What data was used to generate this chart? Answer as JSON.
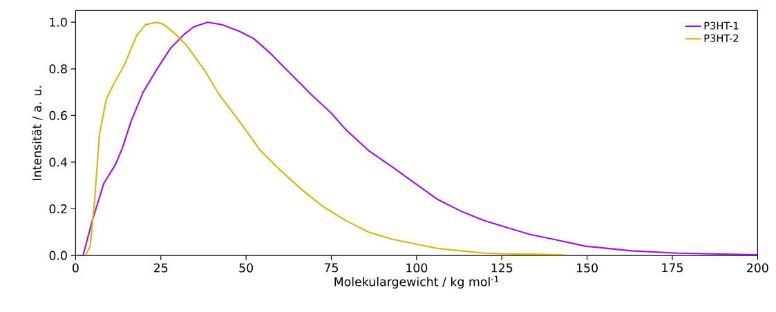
{
  "chart_data": {
    "type": "line",
    "xlabel": "Molekulargewicht / kg mol$^{-1}$",
    "ylabel": "Intensität / a. u.",
    "xlim": [
      0,
      200
    ],
    "ylim": [
      0,
      1.05
    ],
    "xticks": [
      0,
      25,
      50,
      75,
      100,
      125,
      150,
      175,
      200
    ],
    "yticks": [
      {
        "value": 0,
        "label": "0.0"
      },
      {
        "value": 0.2,
        "label": "0.2"
      },
      {
        "value": 0.4,
        "label": "0.4"
      },
      {
        "value": 0.6,
        "label": "0.6"
      },
      {
        "value": 0.8,
        "label": "0.8"
      },
      {
        "value": 1.0,
        "label": "1.0"
      }
    ],
    "legend": "top right",
    "grid": false,
    "marker": "none",
    "line_style": "solid",
    "series": [
      {
        "name": "P3HT-1",
        "color": "#a00ff0",
        "x": [
          0.9,
          2.2,
          4.9,
          8.3,
          11.7,
          13.7,
          16.4,
          19.8,
          23.9,
          27.9,
          32,
          34.6,
          38.7,
          42.8,
          48.2,
          52.2,
          56.9,
          61.6,
          65.7,
          69.1,
          75,
          79.2,
          85.9,
          92.8,
          99.5,
          106.2,
          113,
          119.8,
          126.4,
          133.3,
          140,
          149.5,
          163,
          176.5,
          200
        ],
        "values": [
          0,
          0,
          0.15,
          0.31,
          0.39,
          0.46,
          0.58,
          0.7,
          0.8,
          0.89,
          0.95,
          0.98,
          1.0,
          0.99,
          0.96,
          0.93,
          0.87,
          0.8,
          0.74,
          0.69,
          0.61,
          0.54,
          0.45,
          0.38,
          0.31,
          0.24,
          0.19,
          0.15,
          0.12,
          0.09,
          0.07,
          0.04,
          0.02,
          0.01,
          0.003
        ]
      },
      {
        "name": "P3HT-2",
        "color": "#dcb20c",
        "x": [
          2.9,
          4.3,
          5.6,
          7,
          9,
          11,
          14.4,
          17.8,
          20.5,
          23.9,
          25.9,
          29.2,
          32.6,
          38,
          42.1,
          48.8,
          54.2,
          59,
          65.7,
          72.5,
          79.2,
          85.9,
          92.8,
          99.5,
          106.2,
          113,
          119.8,
          126.4,
          140,
          143
        ],
        "values": [
          0,
          0.04,
          0.24,
          0.52,
          0.67,
          0.73,
          0.82,
          0.94,
          0.99,
          1.0,
          0.99,
          0.95,
          0.9,
          0.79,
          0.69,
          0.56,
          0.45,
          0.38,
          0.29,
          0.21,
          0.15,
          0.1,
          0.07,
          0.05,
          0.03,
          0.02,
          0.01,
          0.007,
          0.004,
          0.003
        ]
      }
    ]
  }
}
